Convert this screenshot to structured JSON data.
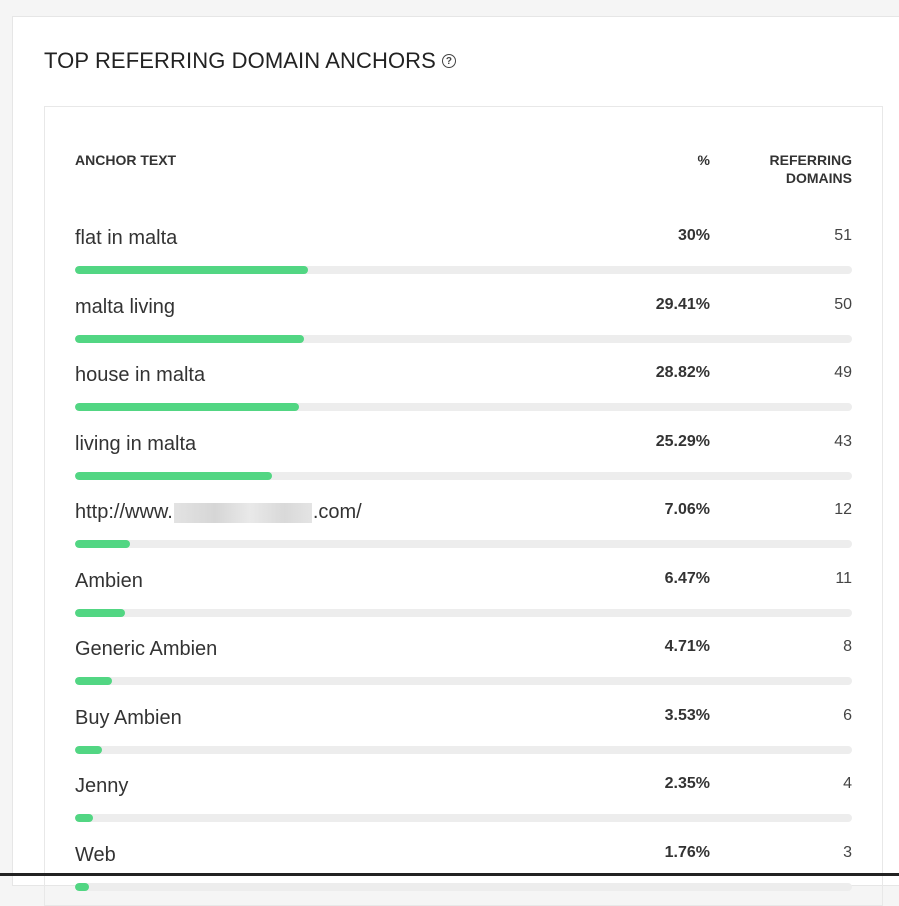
{
  "card": {
    "title": "TOP REFERRING DOMAIN ANCHORS",
    "help_icon": "question-circle-icon"
  },
  "table": {
    "headers": {
      "anchor": "ANCHOR TEXT",
      "pct": "%",
      "referring_line1": "REFERRING",
      "referring_line2": "DOMAINS"
    },
    "rows": [
      {
        "anchor": "flat in malta",
        "pct": "30%",
        "count": "51",
        "fill_fraction": 0.3
      },
      {
        "anchor": "malta living",
        "pct": "29.41%",
        "count": "50",
        "fill_fraction": 0.2941
      },
      {
        "anchor": "house in malta",
        "pct": "28.82%",
        "count": "49",
        "fill_fraction": 0.2882
      },
      {
        "anchor": "living in malta",
        "pct": "25.29%",
        "count": "43",
        "fill_fraction": 0.2529
      },
      {
        "anchor_prefix": "http://www.",
        "anchor_suffix": ".com/",
        "pct": "7.06%",
        "count": "12",
        "fill_fraction": 0.0706
      },
      {
        "anchor": "Ambien",
        "pct": "6.47%",
        "count": "11",
        "fill_fraction": 0.0647
      },
      {
        "anchor": "Generic Ambien",
        "pct": "4.71%",
        "count": "8",
        "fill_fraction": 0.0471
      },
      {
        "anchor": "Buy Ambien",
        "pct": "3.53%",
        "count": "6",
        "fill_fraction": 0.0353
      },
      {
        "anchor": "Jenny",
        "pct": "2.35%",
        "count": "4",
        "fill_fraction": 0.0235
      },
      {
        "anchor": "Web",
        "pct": "1.76%",
        "count": "3",
        "fill_fraction": 0.0176
      }
    ]
  },
  "colors": {
    "bar_fill": "#52d683",
    "bar_track": "#ededed"
  }
}
